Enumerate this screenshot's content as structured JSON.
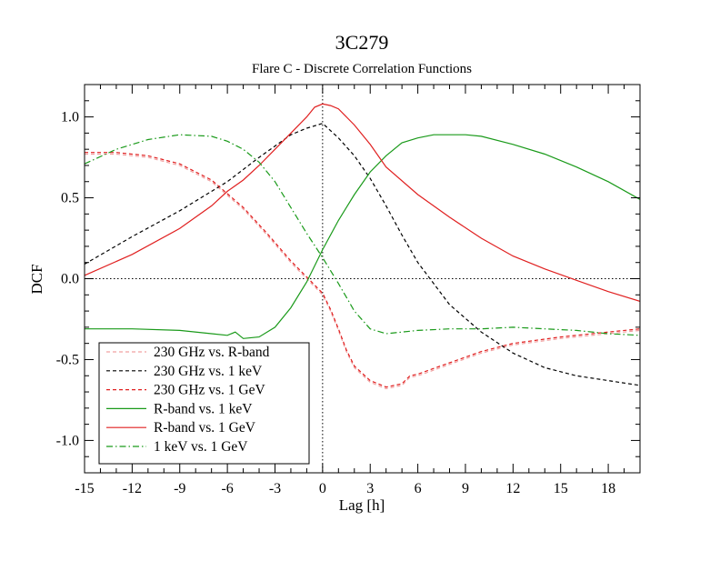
{
  "chart_data": {
    "type": "line",
    "title": "3C279",
    "subtitle": "Flare C - Discrete Correlation Functions",
    "xlabel": "Lag [h]",
    "ylabel": "DCF",
    "xlim": [
      -15,
      20
    ],
    "ylim": [
      -1.2,
      1.2
    ],
    "xticks": [
      -15,
      -12,
      -9,
      -6,
      -3,
      0,
      3,
      6,
      9,
      12,
      15,
      18
    ],
    "xtick_labels": [
      "-15",
      "-12",
      "-9",
      "-6",
      "-3",
      "0",
      "3",
      "6",
      "9",
      "12",
      "15",
      "18"
    ],
    "yticks": [
      -1.0,
      -0.5,
      0.0,
      0.5,
      1.0
    ],
    "ytick_labels": [
      "-1.0",
      "-0.5",
      "0.0",
      "0.5",
      "1.0"
    ],
    "reference_lines": {
      "x": 0,
      "y": 0
    },
    "legend_position": "bottom-left",
    "series": [
      {
        "name": "230 GHz vs. R-band",
        "color": "#f0a0a0",
        "dash": "dashed",
        "x": [
          -15,
          -13,
          -11,
          -9,
          -7,
          -5,
          -3.5,
          -2,
          -1,
          0,
          0.5,
          1,
          1.5,
          2,
          3,
          4,
          5,
          5.5,
          6,
          8,
          10,
          12,
          15,
          18,
          20
        ],
        "y": [
          0.77,
          0.77,
          0.75,
          0.7,
          0.6,
          0.43,
          0.27,
          0.1,
          0.0,
          -0.1,
          -0.2,
          -0.32,
          -0.45,
          -0.55,
          -0.64,
          -0.68,
          -0.66,
          -0.61,
          -0.6,
          -0.53,
          -0.46,
          -0.41,
          -0.37,
          -0.34,
          -0.32
        ]
      },
      {
        "name": "230 GHz vs. 1 keV",
        "color": "#000000",
        "dash": "dashed",
        "x": [
          -15,
          -12,
          -9,
          -6,
          -4,
          -2,
          -1,
          0,
          1,
          2,
          3,
          4,
          5,
          6,
          8,
          10,
          12,
          14,
          16,
          18,
          20
        ],
        "y": [
          0.09,
          0.26,
          0.42,
          0.6,
          0.75,
          0.89,
          0.93,
          0.96,
          0.87,
          0.76,
          0.62,
          0.45,
          0.27,
          0.1,
          -0.16,
          -0.33,
          -0.46,
          -0.55,
          -0.6,
          -0.63,
          -0.66
        ]
      },
      {
        "name": "230 GHz vs. 1 GeV",
        "color": "#e02020",
        "dash": "dashed",
        "x": [
          -15,
          -13,
          -11,
          -9,
          -7,
          -5,
          -3.5,
          -2,
          -1,
          0,
          0.5,
          1,
          1.5,
          2,
          3,
          4,
          5,
          5.5,
          6,
          8,
          10,
          12,
          15,
          18,
          20
        ],
        "y": [
          0.78,
          0.78,
          0.76,
          0.71,
          0.61,
          0.44,
          0.28,
          0.11,
          0.01,
          -0.09,
          -0.19,
          -0.31,
          -0.44,
          -0.54,
          -0.63,
          -0.67,
          -0.65,
          -0.6,
          -0.59,
          -0.52,
          -0.45,
          -0.4,
          -0.36,
          -0.33,
          -0.31
        ]
      },
      {
        "name": "R-band vs. 1 keV",
        "color": "#1a9a1a",
        "dash": "solid",
        "x": [
          -15,
          -12,
          -9,
          -7,
          -6,
          -5.5,
          -5,
          -4,
          -3,
          -2,
          -1,
          0,
          1,
          2,
          3,
          4,
          5,
          6,
          7,
          8,
          9,
          10,
          12,
          14,
          16,
          18,
          20
        ],
        "y": [
          -0.31,
          -0.31,
          -0.32,
          -0.34,
          -0.35,
          -0.33,
          -0.37,
          -0.36,
          -0.3,
          -0.18,
          -0.02,
          0.18,
          0.36,
          0.52,
          0.66,
          0.76,
          0.84,
          0.87,
          0.89,
          0.89,
          0.89,
          0.88,
          0.83,
          0.77,
          0.69,
          0.6,
          0.49
        ]
      },
      {
        "name": "R-band vs. 1 GeV",
        "color": "#e02020",
        "dash": "solid",
        "x": [
          -15,
          -12,
          -9,
          -7,
          -6,
          -5,
          -4,
          -3,
          -2,
          -1,
          -0.5,
          0,
          0.5,
          1,
          2,
          3,
          4,
          6,
          8,
          10,
          12,
          14,
          16,
          18,
          20
        ],
        "y": [
          0.02,
          0.15,
          0.31,
          0.45,
          0.54,
          0.61,
          0.7,
          0.8,
          0.9,
          1.0,
          1.06,
          1.08,
          1.07,
          1.05,
          0.95,
          0.83,
          0.69,
          0.52,
          0.38,
          0.25,
          0.14,
          0.06,
          -0.01,
          -0.08,
          -0.14
        ]
      },
      {
        "name": "1 keV vs. 1 GeV",
        "color": "#1a9a1a",
        "dash": "dashdot",
        "x": [
          -15,
          -13,
          -11,
          -9,
          -7,
          -6,
          -5,
          -4,
          -3,
          -2,
          -1,
          0,
          1,
          2,
          3,
          4,
          5,
          6,
          8,
          10,
          12,
          14,
          16,
          18,
          20
        ],
        "y": [
          0.71,
          0.8,
          0.86,
          0.89,
          0.88,
          0.85,
          0.8,
          0.72,
          0.6,
          0.44,
          0.28,
          0.13,
          -0.03,
          -0.2,
          -0.31,
          -0.34,
          -0.33,
          -0.32,
          -0.31,
          -0.31,
          -0.3,
          -0.31,
          -0.32,
          -0.34,
          -0.35
        ]
      }
    ]
  }
}
